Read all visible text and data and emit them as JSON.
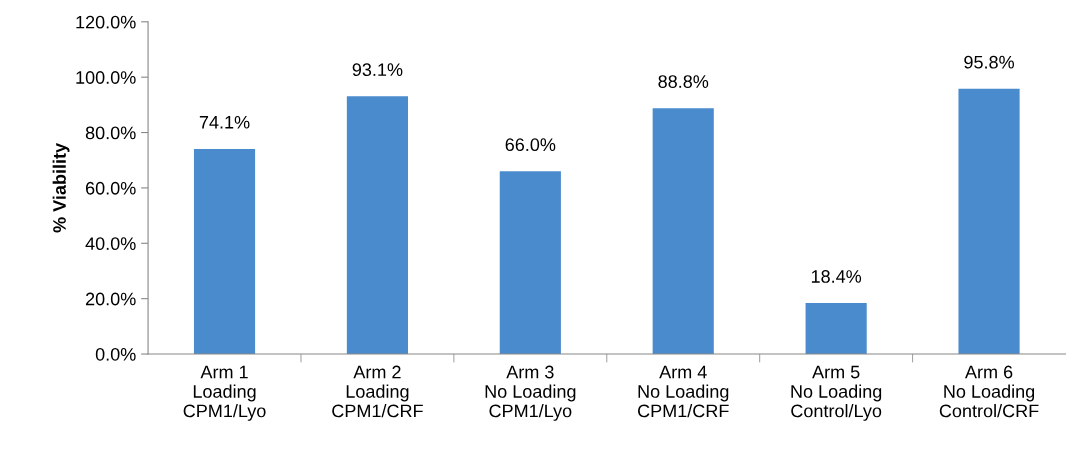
{
  "chart_data": {
    "type": "bar",
    "ylabel": "% Viability",
    "categories": [
      "Arm 1\nLoading\nCPM1/Lyo",
      "Arm 2\nLoading\nCPM1/CRF",
      "Arm 3\nNo Loading\nCPM1/Lyo",
      "Arm 4\nNo Loading\nCPM1/CRF",
      "Arm 5\nNo Loading\nControl/Lyo",
      "Arm 6\nNo Loading\nControl/CRF"
    ],
    "values": [
      74.1,
      93.1,
      66.0,
      88.8,
      18.4,
      95.8
    ],
    "value_labels": [
      "74.1%",
      "93.1%",
      "66.0%",
      "88.8%",
      "18.4%",
      "95.8%"
    ],
    "color": "#4a8bcd",
    "ylim": [
      0,
      120
    ],
    "yticks": [
      {
        "value": 0,
        "label": "0.0%"
      },
      {
        "value": 20,
        "label": "20.0%"
      },
      {
        "value": 40,
        "label": "40.0%"
      },
      {
        "value": 60,
        "label": "60.0%"
      },
      {
        "value": 80,
        "label": "80.0%"
      },
      {
        "value": 100,
        "label": "100.0%"
      },
      {
        "value": 120,
        "label": "120.0%"
      }
    ],
    "grid": false,
    "legend": false
  }
}
